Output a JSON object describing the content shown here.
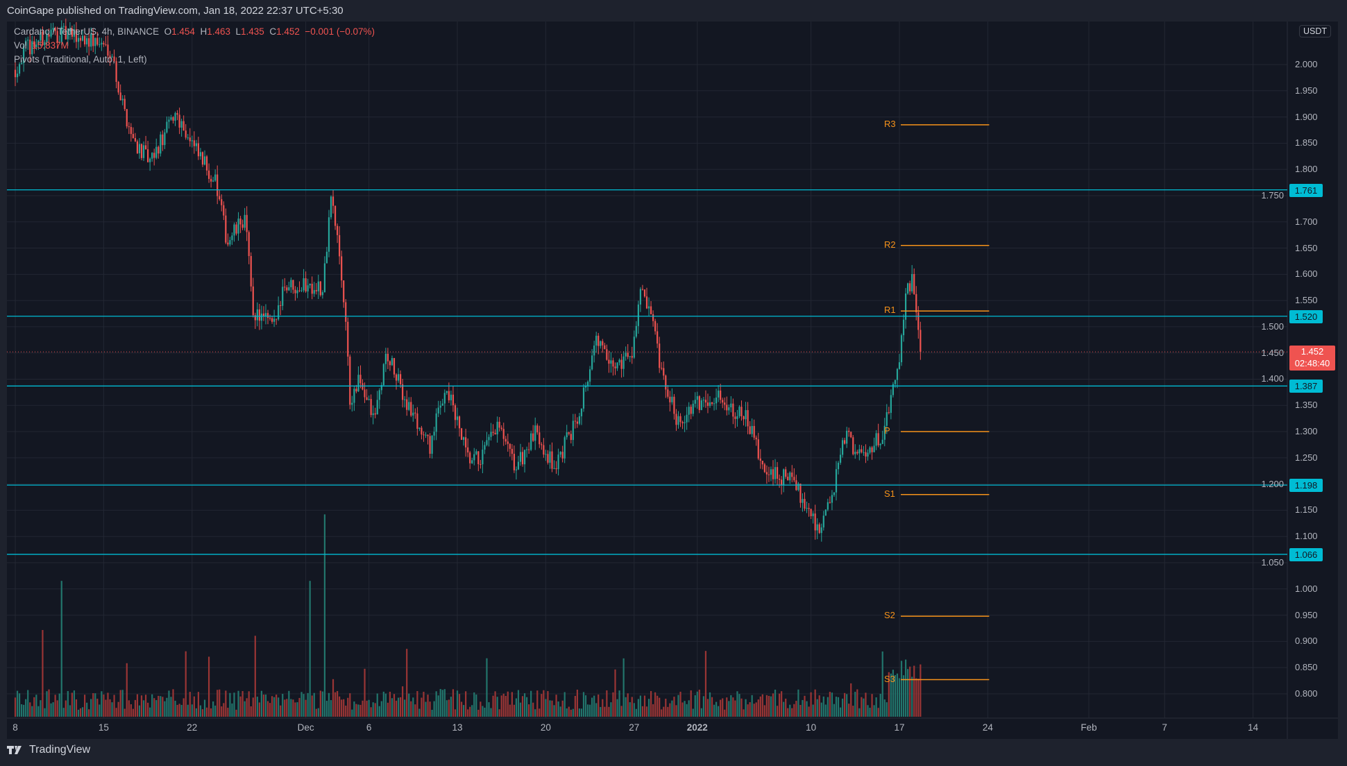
{
  "header": {
    "published": "CoinGape published on TradingView.com, Jan 18, 2022 22:37 UTC+5:30"
  },
  "legend": {
    "symbol": "Cardano / TetherUS, 4h, BINANCE",
    "o_label": "O",
    "o": "1.454",
    "h_label": "H",
    "h": "1.463",
    "l_label": "L",
    "l": "1.435",
    "c_label": "C",
    "c": "1.452",
    "change": "−0.001 (−0.07%)",
    "vol_label": "Vol",
    "vol": "15.837M",
    "pivots": "Pivots (Traditional, Auto, 1, Left)"
  },
  "currency": "USDT",
  "current": {
    "price": 1.452,
    "price_text": "1.452",
    "countdown": "02:48:40"
  },
  "footer": {
    "brand": "TradingView"
  },
  "colors": {
    "up": "#26a69a",
    "down": "#ef5350",
    "vol_up": "#22756c",
    "vol_down": "#9a3535",
    "level": "#00bcd4",
    "pivot": "#f7931a",
    "bg": "#131722",
    "grid": "#232733"
  },
  "chart_data": {
    "type": "candlestick",
    "title": "Cardano / TetherUS, 4h, BINANCE",
    "ylim": [
      0.75,
      2.07
    ],
    "y_ticks": [
      "2.000",
      "1.950",
      "1.900",
      "1.850",
      "1.800",
      "1.750",
      "1.700",
      "1.650",
      "1.600",
      "1.550",
      "1.500",
      "1.450",
      "1.400",
      "1.350",
      "1.300",
      "1.250",
      "1.200",
      "1.150",
      "1.100",
      "1.050",
      "1.000",
      "0.950",
      "0.900",
      "0.850",
      "0.800"
    ],
    "x_ticks": [
      {
        "label": "8",
        "day": 0
      },
      {
        "label": "15",
        "day": 7
      },
      {
        "label": "22",
        "day": 14
      },
      {
        "label": "Dec",
        "day": 23
      },
      {
        "label": "6",
        "day": 28
      },
      {
        "label": "13",
        "day": 35
      },
      {
        "label": "20",
        "day": 42
      },
      {
        "label": "27",
        "day": 49
      },
      {
        "label": "2022",
        "day": 54
      },
      {
        "label": "10",
        "day": 63
      },
      {
        "label": "17",
        "day": 70
      },
      {
        "label": "24",
        "day": 77
      },
      {
        "label": "Feb",
        "day": 85
      },
      {
        "label": "7",
        "day": 91
      },
      {
        "label": "14",
        "day": 98
      }
    ],
    "horizontal_levels": [
      {
        "value": 1.761,
        "text": "1.761"
      },
      {
        "value": 1.52,
        "text": "1.520"
      },
      {
        "value": 1.387,
        "text": "1.387"
      },
      {
        "value": 1.198,
        "text": "1.198"
      },
      {
        "value": 1.066,
        "text": "1.066"
      }
    ],
    "pivots": [
      {
        "label": "R3",
        "value": 1.885
      },
      {
        "label": "R2",
        "value": 1.655
      },
      {
        "label": "R1",
        "value": 1.53
      },
      {
        "label": "P",
        "value": 1.3
      },
      {
        "label": "S1",
        "value": 1.18
      },
      {
        "label": "S2",
        "value": 0.948
      },
      {
        "label": "S3",
        "value": 0.827
      }
    ],
    "pivot_range_days": [
      70,
      77
    ],
    "candles_per_day": 6,
    "approx_close_path": [
      [
        0,
        1.99
      ],
      [
        0.8,
        2.03
      ],
      [
        2.9,
        2.06
      ],
      [
        5.6,
        2.05
      ],
      [
        7.6,
        2.03
      ],
      [
        8.3,
        1.94
      ],
      [
        9.3,
        1.86
      ],
      [
        10.7,
        1.81
      ],
      [
        12.7,
        1.91
      ],
      [
        14.4,
        1.83
      ],
      [
        15.8,
        1.78
      ],
      [
        16.8,
        1.66
      ],
      [
        18.2,
        1.71
      ],
      [
        18.8,
        1.53
      ],
      [
        20.5,
        1.5
      ],
      [
        21.2,
        1.58
      ],
      [
        24,
        1.58
      ],
      [
        24.3,
        1.55
      ],
      [
        25,
        1.75
      ],
      [
        25.7,
        1.63
      ],
      [
        26.3,
        1.47
      ],
      [
        26.5,
        1.35
      ],
      [
        27.3,
        1.4
      ],
      [
        28.4,
        1.32
      ],
      [
        29.4,
        1.45
      ],
      [
        30.7,
        1.37
      ],
      [
        32.8,
        1.27
      ],
      [
        34.1,
        1.39
      ],
      [
        35.9,
        1.24
      ],
      [
        36.9,
        1.25
      ],
      [
        38.2,
        1.31
      ],
      [
        39.6,
        1.23
      ],
      [
        41.3,
        1.3
      ],
      [
        42.7,
        1.23
      ],
      [
        44.4,
        1.32
      ],
      [
        46.1,
        1.48
      ],
      [
        47.1,
        1.42
      ],
      [
        48.8,
        1.45
      ],
      [
        49.5,
        1.57
      ],
      [
        50.5,
        1.5
      ],
      [
        51.2,
        1.4
      ],
      [
        52.5,
        1.32
      ],
      [
        53.9,
        1.35
      ],
      [
        55.3,
        1.37
      ],
      [
        56.6,
        1.35
      ],
      [
        58,
        1.32
      ],
      [
        59.3,
        1.22
      ],
      [
        61.4,
        1.21
      ],
      [
        62.7,
        1.16
      ],
      [
        63.7,
        1.11
      ],
      [
        64.8,
        1.19
      ],
      [
        65.8,
        1.3
      ],
      [
        66.8,
        1.25
      ],
      [
        68.8,
        1.3
      ],
      [
        69.9,
        1.42
      ],
      [
        70.5,
        1.57
      ],
      [
        71,
        1.59
      ],
      [
        71.7,
        1.452
      ]
    ],
    "volume_spikes_millions": [
      {
        "day": 3.6,
        "value": 47
      },
      {
        "day": 23.4,
        "value": 47
      },
      {
        "day": 24.5,
        "value": 70
      },
      {
        "day": 19,
        "value": 28
      },
      {
        "day": 2.2,
        "value": 30
      }
    ],
    "volume_typical_millions": 6,
    "volume_max_millions": 72
  }
}
